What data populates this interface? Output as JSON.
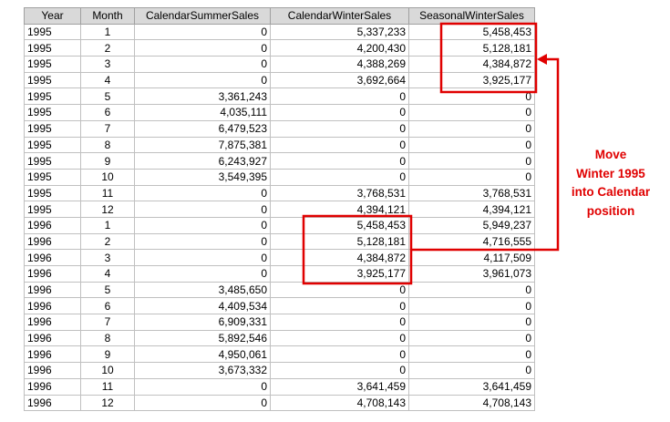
{
  "table": {
    "header": [
      "Year",
      "Month",
      "CalendarSummerSales",
      "CalendarWinterSales",
      "SeasonalWinterSales"
    ],
    "rows": [
      [
        "1995",
        "1",
        "0",
        "5,337,233",
        "5,458,453"
      ],
      [
        "1995",
        "2",
        "0",
        "4,200,430",
        "5,128,181"
      ],
      [
        "1995",
        "3",
        "0",
        "4,388,269",
        "4,384,872"
      ],
      [
        "1995",
        "4",
        "0",
        "3,692,664",
        "3,925,177"
      ],
      [
        "1995",
        "5",
        "3,361,243",
        "0",
        "0"
      ],
      [
        "1995",
        "6",
        "4,035,111",
        "0",
        "0"
      ],
      [
        "1995",
        "7",
        "6,479,523",
        "0",
        "0"
      ],
      [
        "1995",
        "8",
        "7,875,381",
        "0",
        "0"
      ],
      [
        "1995",
        "9",
        "6,243,927",
        "0",
        "0"
      ],
      [
        "1995",
        "10",
        "3,549,395",
        "0",
        "0"
      ],
      [
        "1995",
        "11",
        "0",
        "3,768,531",
        "3,768,531"
      ],
      [
        "1995",
        "12",
        "0",
        "4,394,121",
        "4,394,121"
      ],
      [
        "1996",
        "1",
        "0",
        "5,458,453",
        "5,949,237"
      ],
      [
        "1996",
        "2",
        "0",
        "5,128,181",
        "4,716,555"
      ],
      [
        "1996",
        "3",
        "0",
        "4,384,872",
        "4,117,509"
      ],
      [
        "1996",
        "4",
        "0",
        "3,925,177",
        "3,961,073"
      ],
      [
        "1996",
        "5",
        "3,485,650",
        "0",
        "0"
      ],
      [
        "1996",
        "6",
        "4,409,534",
        "0",
        "0"
      ],
      [
        "1996",
        "7",
        "6,909,331",
        "0",
        "0"
      ],
      [
        "1996",
        "8",
        "5,892,546",
        "0",
        "0"
      ],
      [
        "1996",
        "9",
        "4,950,061",
        "0",
        "0"
      ],
      [
        "1996",
        "10",
        "3,673,332",
        "0",
        "0"
      ],
      [
        "1996",
        "11",
        "0",
        "3,641,459",
        "3,641,459"
      ],
      [
        "1996",
        "12",
        "0",
        "4,708,143",
        "4,708,143"
      ]
    ]
  },
  "annotation": {
    "lines": [
      "Move",
      "Winter 1995",
      "into Calendar",
      "position"
    ]
  }
}
